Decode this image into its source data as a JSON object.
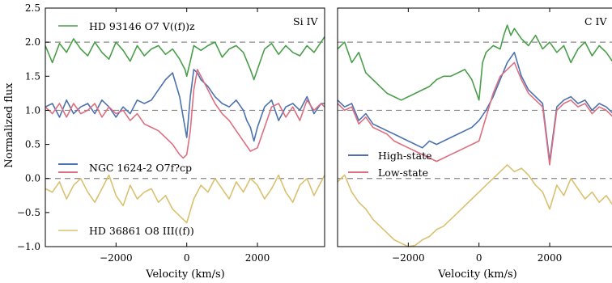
{
  "chart_data": [
    {
      "type": "line",
      "panel": "left",
      "title": "Si IV",
      "xlabel": "Velocity (km/s)",
      "ylabel": "Normalized flux",
      "xlim": [
        -4000,
        3900
      ],
      "ylim": [
        -1.0,
        2.5
      ],
      "xticks": [
        -2000,
        0,
        2000
      ],
      "xtick_labels": [
        "−2000",
        "0",
        "2000"
      ],
      "yticks": [
        -1.0,
        -0.5,
        0.0,
        0.5,
        1.0,
        1.5,
        2.0,
        2.5
      ],
      "ytick_labels": [
        "−1.0",
        "−0.5",
        "0.0",
        "0.5",
        "1.0",
        "1.5",
        "2.0",
        "2.5"
      ],
      "reference_lines": [
        2.0,
        1.0,
        0.0
      ],
      "series": [
        {
          "name": "HD 93146 O7 V((f))z",
          "color": "#4a9e4a",
          "x": [
            -4000,
            -3800,
            -3600,
            -3400,
            -3200,
            -3000,
            -2800,
            -2600,
            -2400,
            -2200,
            -2000,
            -1800,
            -1600,
            -1400,
            -1200,
            -1000,
            -800,
            -600,
            -400,
            -200,
            -50,
            0,
            100,
            200,
            400,
            600,
            800,
            1000,
            1200,
            1400,
            1600,
            1800,
            1900,
            2000,
            2100,
            2200,
            2400,
            2600,
            2800,
            3000,
            3200,
            3400,
            3600,
            3800,
            3900
          ],
          "y": [
            1.95,
            1.7,
            1.98,
            1.85,
            2.05,
            1.9,
            1.8,
            2.0,
            1.85,
            1.75,
            2.0,
            1.88,
            1.72,
            1.95,
            1.8,
            1.9,
            1.95,
            1.82,
            1.9,
            1.75,
            1.6,
            1.5,
            1.72,
            1.95,
            1.88,
            1.95,
            2.0,
            1.78,
            1.9,
            1.95,
            1.85,
            1.6,
            1.45,
            1.6,
            1.75,
            1.9,
            1.98,
            1.82,
            1.95,
            1.85,
            1.8,
            1.95,
            1.85,
            2.0,
            2.08
          ]
        },
        {
          "name": "NGC 1624-2 O7f?cp (blue)",
          "color": "#4c72b0",
          "x": [
            -4000,
            -3800,
            -3600,
            -3400,
            -3200,
            -3000,
            -2800,
            -2600,
            -2400,
            -2200,
            -2000,
            -1800,
            -1600,
            -1400,
            -1200,
            -1000,
            -800,
            -600,
            -400,
            -200,
            0,
            100,
            200,
            300,
            400,
            600,
            800,
            1000,
            1200,
            1400,
            1600,
            1700,
            1800,
            1900,
            2000,
            2200,
            2400,
            2600,
            2800,
            3000,
            3200,
            3400,
            3600,
            3800,
            3900
          ],
          "y": [
            1.05,
            1.1,
            0.9,
            1.15,
            0.95,
            1.05,
            1.1,
            0.95,
            1.15,
            1.05,
            0.9,
            1.05,
            0.95,
            1.15,
            1.1,
            1.15,
            1.3,
            1.45,
            1.55,
            1.2,
            0.6,
            1.2,
            1.6,
            1.55,
            1.45,
            1.35,
            1.2,
            1.1,
            1.05,
            1.15,
            1.0,
            0.85,
            0.75,
            0.55,
            0.75,
            1.05,
            1.15,
            0.85,
            1.05,
            1.1,
            1.0,
            1.2,
            0.95,
            1.1,
            1.1
          ]
        },
        {
          "name": "NGC 1624-2 O7f?cp",
          "color": "#dd6f80",
          "x": [
            -4000,
            -3800,
            -3600,
            -3400,
            -3200,
            -3000,
            -2800,
            -2600,
            -2400,
            -2200,
            -2000,
            -1800,
            -1600,
            -1400,
            -1200,
            -1000,
            -800,
            -600,
            -400,
            -200,
            -100,
            0,
            100,
            200,
            300,
            400,
            600,
            800,
            1000,
            1200,
            1400,
            1600,
            1800,
            2000,
            2200,
            2400,
            2600,
            2800,
            3000,
            3200,
            3400,
            3600,
            3800,
            3900
          ],
          "y": [
            1.05,
            0.95,
            1.1,
            0.9,
            1.1,
            0.95,
            1.0,
            1.1,
            0.9,
            1.05,
            0.95,
            1.0,
            0.85,
            0.95,
            0.8,
            0.75,
            0.7,
            0.6,
            0.5,
            0.35,
            0.3,
            0.35,
            0.7,
            1.3,
            1.6,
            1.5,
            1.3,
            1.1,
            0.95,
            0.85,
            0.7,
            0.55,
            0.4,
            0.45,
            0.75,
            1.05,
            1.1,
            0.9,
            1.05,
            0.85,
            1.15,
            1.0,
            1.1,
            1.05
          ]
        },
        {
          "name": "HD 36861 O8 III((f))",
          "color": "#d9c170",
          "x": [
            -4000,
            -3800,
            -3600,
            -3400,
            -3200,
            -3000,
            -2800,
            -2600,
            -2400,
            -2200,
            -2000,
            -1800,
            -1600,
            -1400,
            -1200,
            -1000,
            -800,
            -600,
            -400,
            -200,
            0,
            200,
            400,
            600,
            800,
            1000,
            1200,
            1400,
            1600,
            1800,
            2000,
            2200,
            2400,
            2600,
            2800,
            3000,
            3200,
            3400,
            3600,
            3800,
            3900
          ],
          "y": [
            -0.15,
            -0.2,
            -0.05,
            -0.3,
            -0.1,
            0.0,
            -0.2,
            -0.35,
            -0.15,
            0.05,
            -0.25,
            -0.4,
            -0.1,
            -0.3,
            -0.2,
            -0.15,
            -0.35,
            -0.25,
            -0.45,
            -0.55,
            -0.65,
            -0.3,
            -0.1,
            -0.2,
            0.0,
            -0.15,
            -0.3,
            -0.05,
            -0.2,
            0.0,
            -0.1,
            -0.3,
            -0.15,
            0.05,
            -0.2,
            -0.35,
            -0.1,
            0.0,
            -0.25,
            -0.05,
            0.05
          ]
        }
      ],
      "labels": {
        "top_series": "HD 93146 O7 V((f))z",
        "middle_series": "NGC 1624-2 O7f?cp",
        "bottom_series": "HD 36861 O8 III((f))"
      }
    },
    {
      "type": "line",
      "panel": "right",
      "title": "C IV",
      "xlabel": "Velocity (km/s)",
      "ylabel": "",
      "xlim": [
        -4000,
        3900
      ],
      "ylim": [
        -1.0,
        2.5
      ],
      "xticks": [
        -2000,
        0,
        2000
      ],
      "xtick_labels": [
        "−2000",
        "0",
        "2000"
      ],
      "reference_lines": [
        2.0,
        1.0,
        0.0
      ],
      "legend": {
        "position": "center-left",
        "entries": [
          {
            "label": "High-state",
            "color": "#4c72b0"
          },
          {
            "label": "Low-state",
            "color": "#dd6f80"
          }
        ]
      },
      "series": [
        {
          "color": "#4a9e4a",
          "x": [
            -4000,
            -3800,
            -3600,
            -3400,
            -3200,
            -3000,
            -2800,
            -2600,
            -2400,
            -2200,
            -2000,
            -1800,
            -1600,
            -1400,
            -1200,
            -1000,
            -800,
            -600,
            -400,
            -200,
            -100,
            0,
            100,
            200,
            400,
            600,
            700,
            800,
            900,
            1000,
            1200,
            1400,
            1600,
            1800,
            2000,
            2200,
            2400,
            2600,
            2800,
            3000,
            3200,
            3400,
            3600,
            3800,
            3900
          ],
          "y": [
            1.9,
            2.0,
            1.7,
            1.85,
            1.55,
            1.45,
            1.35,
            1.25,
            1.2,
            1.15,
            1.2,
            1.25,
            1.3,
            1.35,
            1.45,
            1.5,
            1.5,
            1.55,
            1.6,
            1.45,
            1.3,
            1.15,
            1.7,
            1.85,
            1.95,
            1.9,
            2.1,
            2.25,
            2.1,
            2.2,
            2.05,
            1.95,
            2.1,
            1.9,
            2.0,
            1.85,
            1.95,
            1.7,
            1.9,
            2.0,
            1.8,
            1.95,
            1.85,
            1.7,
            2.0
          ]
        },
        {
          "name": "High-state",
          "color": "#4c72b0",
          "x": [
            -4000,
            -3800,
            -3600,
            -3400,
            -3200,
            -3000,
            -2800,
            -2600,
            -2400,
            -2200,
            -2000,
            -1800,
            -1600,
            -1400,
            -1200,
            -1000,
            -800,
            -600,
            -400,
            -200,
            0,
            200,
            400,
            600,
            800,
            1000,
            1200,
            1400,
            1600,
            1800,
            2000,
            2200,
            2400,
            2600,
            2800,
            3000,
            3200,
            3400,
            3600,
            3800,
            3900
          ],
          "y": [
            1.15,
            1.05,
            1.1,
            0.85,
            0.95,
            0.8,
            0.75,
            0.7,
            0.65,
            0.6,
            0.55,
            0.5,
            0.45,
            0.55,
            0.5,
            0.55,
            0.6,
            0.65,
            0.7,
            0.75,
            0.85,
            1.0,
            1.2,
            1.45,
            1.7,
            1.85,
            1.5,
            1.3,
            1.2,
            1.1,
            0.25,
            1.05,
            1.15,
            1.2,
            1.1,
            1.15,
            1.0,
            1.1,
            1.05,
            0.95,
            1.1
          ]
        },
        {
          "name": "Low-state",
          "color": "#dd6f80",
          "x": [
            -4000,
            -3800,
            -3600,
            -3400,
            -3200,
            -3000,
            -2800,
            -2600,
            -2400,
            -2200,
            -2000,
            -1800,
            -1600,
            -1400,
            -1200,
            -1000,
            -800,
            -600,
            -400,
            -200,
            0,
            200,
            400,
            600,
            800,
            1000,
            1200,
            1400,
            1600,
            1800,
            2000,
            2200,
            2400,
            2600,
            2800,
            3000,
            3200,
            3400,
            3600,
            3800,
            3900
          ],
          "y": [
            1.1,
            1.0,
            1.05,
            0.8,
            0.9,
            0.75,
            0.7,
            0.65,
            0.55,
            0.5,
            0.45,
            0.4,
            0.35,
            0.3,
            0.25,
            0.3,
            0.35,
            0.4,
            0.45,
            0.5,
            0.55,
            0.9,
            1.25,
            1.5,
            1.6,
            1.7,
            1.45,
            1.25,
            1.15,
            1.05,
            0.2,
            1.0,
            1.1,
            1.15,
            1.05,
            1.1,
            0.95,
            1.05,
            1.0,
            0.9,
            1.05
          ]
        },
        {
          "color": "#d9c170",
          "x": [
            -4000,
            -3800,
            -3600,
            -3400,
            -3200,
            -3000,
            -2800,
            -2600,
            -2400,
            -2200,
            -2000,
            -1800,
            -1600,
            -1400,
            -1200,
            -1000,
            -800,
            -600,
            -400,
            -200,
            0,
            200,
            400,
            600,
            800,
            1000,
            1200,
            1400,
            1600,
            1800,
            2000,
            2200,
            2400,
            2600,
            2800,
            3000,
            3200,
            3400,
            3600,
            3800,
            3900
          ],
          "y": [
            -0.05,
            0.05,
            -0.2,
            -0.35,
            -0.45,
            -0.6,
            -0.7,
            -0.8,
            -0.9,
            -0.95,
            -1.0,
            -0.98,
            -0.9,
            -0.85,
            -0.75,
            -0.7,
            -0.6,
            -0.5,
            -0.4,
            -0.3,
            -0.2,
            -0.1,
            0.0,
            0.1,
            0.2,
            0.1,
            0.15,
            0.05,
            -0.1,
            -0.2,
            -0.45,
            -0.1,
            -0.25,
            0.0,
            -0.15,
            -0.3,
            -0.2,
            -0.35,
            -0.25,
            -0.4,
            -0.3
          ]
        }
      ]
    }
  ]
}
